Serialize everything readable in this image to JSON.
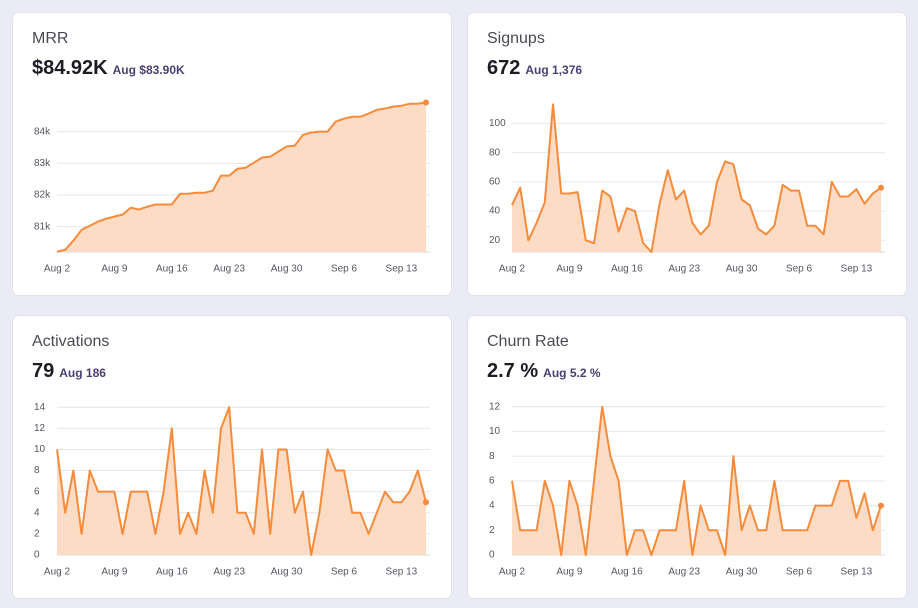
{
  "chart_data": [
    {
      "type": "area",
      "title": "MRR",
      "kpi": "$84.92K",
      "kpi_note": "Aug $83.90K",
      "color": "#f68b3c",
      "fill": "#fddcc5",
      "grid": true,
      "categories": [
        "Aug 2",
        null,
        null,
        null,
        null,
        null,
        null,
        "Aug 9",
        null,
        null,
        null,
        null,
        null,
        null,
        "Aug 16",
        null,
        null,
        null,
        null,
        null,
        null,
        "Aug 23",
        null,
        null,
        null,
        null,
        null,
        null,
        "Aug 30",
        null,
        null,
        null,
        null,
        null,
        null,
        "Sep 6",
        null,
        null,
        null,
        null,
        null,
        null,
        "Sep 13",
        null,
        null,
        null
      ],
      "values": [
        80.21,
        80.27,
        80.56,
        80.9,
        81.03,
        81.16,
        81.25,
        81.32,
        81.38,
        81.6,
        81.54,
        81.63,
        81.7,
        81.7,
        81.7,
        82.04,
        82.04,
        82.07,
        82.07,
        82.14,
        82.61,
        82.61,
        82.83,
        82.86,
        83.02,
        83.18,
        83.21,
        83.37,
        83.53,
        83.56,
        83.9,
        83.97,
        84.0,
        84.0,
        84.32,
        84.41,
        84.47,
        84.47,
        84.57,
        84.69,
        84.73,
        84.79,
        84.82,
        84.88,
        84.88,
        84.92
      ],
      "ylim": [
        80.2,
        85
      ],
      "yticks": [
        {
          "value": 81,
          "label": "81k"
        },
        {
          "value": 82,
          "label": "82k"
        },
        {
          "value": 83,
          "label": "83k"
        },
        {
          "value": 84,
          "label": "84k"
        }
      ]
    },
    {
      "type": "area",
      "title": "Signups",
      "kpi": "672",
      "kpi_note": "Aug 1,376",
      "color": "#f68b3c",
      "fill": "#fddcc5",
      "grid": true,
      "categories": [
        "Aug 2",
        null,
        null,
        null,
        null,
        null,
        null,
        "Aug 9",
        null,
        null,
        null,
        null,
        null,
        null,
        "Aug 16",
        null,
        null,
        null,
        null,
        null,
        null,
        "Aug 23",
        null,
        null,
        null,
        null,
        null,
        null,
        "Aug 30",
        null,
        null,
        null,
        null,
        null,
        null,
        "Sep 6",
        null,
        null,
        null,
        null,
        null,
        null,
        "Sep 13",
        null,
        null,
        null
      ],
      "values": [
        44,
        56,
        20,
        32,
        46,
        113,
        52,
        52,
        53,
        20,
        18,
        54,
        50,
        26,
        42,
        40,
        18,
        12,
        45,
        68,
        48,
        54,
        32,
        24,
        30,
        60,
        74,
        72,
        48,
        44,
        28,
        24,
        30,
        58,
        54,
        54,
        30,
        30,
        24,
        60,
        50,
        50,
        55,
        45,
        52,
        56
      ],
      "ylim": [
        12,
        116
      ],
      "yticks": [
        20,
        40,
        60,
        80,
        100
      ]
    },
    {
      "type": "area",
      "title": "Activations",
      "kpi": "79",
      "kpi_note": "Aug 186",
      "color": "#f68b3c",
      "fill": "#fddcc5",
      "grid": true,
      "categories": [
        "Aug 2",
        null,
        null,
        null,
        null,
        null,
        null,
        "Aug 9",
        null,
        null,
        null,
        null,
        null,
        null,
        "Aug 16",
        null,
        null,
        null,
        null,
        null,
        null,
        "Aug 23",
        null,
        null,
        null,
        null,
        null,
        null,
        "Aug 30",
        null,
        null,
        null,
        null,
        null,
        null,
        "Sep 6",
        null,
        null,
        null,
        null,
        null,
        null,
        "Sep 13",
        null,
        null,
        null
      ],
      "values": [
        10,
        4,
        8,
        2,
        8,
        6,
        6,
        6,
        2,
        6,
        6,
        6,
        2,
        6,
        12,
        2,
        4,
        2,
        8,
        4,
        12,
        14,
        4,
        4,
        2,
        10,
        2,
        10,
        10,
        4,
        6,
        0,
        4,
        10,
        8,
        8,
        4,
        4,
        2,
        4,
        6,
        5,
        5,
        6,
        8,
        5
      ],
      "ylim": [
        0,
        14.4
      ],
      "yticks": [
        0,
        2,
        4,
        6,
        8,
        10,
        12,
        14
      ]
    },
    {
      "type": "area",
      "title": "Churn Rate",
      "kpi": "2.7 %",
      "kpi_note": "Aug 5.2 %",
      "color": "#f68b3c",
      "fill": "#fddcc5",
      "grid": true,
      "categories": [
        "Aug 2",
        null,
        null,
        null,
        null,
        null,
        null,
        "Aug 9",
        null,
        null,
        null,
        null,
        null,
        null,
        "Aug 16",
        null,
        null,
        null,
        null,
        null,
        null,
        "Aug 23",
        null,
        null,
        null,
        null,
        null,
        null,
        "Aug 30",
        null,
        null,
        null,
        null,
        null,
        null,
        "Sep 6",
        null,
        null,
        null,
        null,
        null,
        null,
        "Sep 13",
        null,
        null,
        null
      ],
      "values": [
        6,
        2,
        2,
        2,
        6,
        4,
        0,
        6,
        4,
        0,
        6,
        12,
        8,
        6,
        0,
        2,
        2,
        0,
        2,
        2,
        2,
        6,
        0,
        4,
        2,
        2,
        0,
        8,
        2,
        4,
        2,
        2,
        6,
        2,
        2,
        2,
        2,
        4,
        4,
        4,
        6,
        6,
        3,
        5,
        2,
        4
      ],
      "ylim": [
        0,
        12.3
      ],
      "yticks": [
        0,
        2,
        4,
        6,
        8,
        10,
        12
      ]
    }
  ]
}
